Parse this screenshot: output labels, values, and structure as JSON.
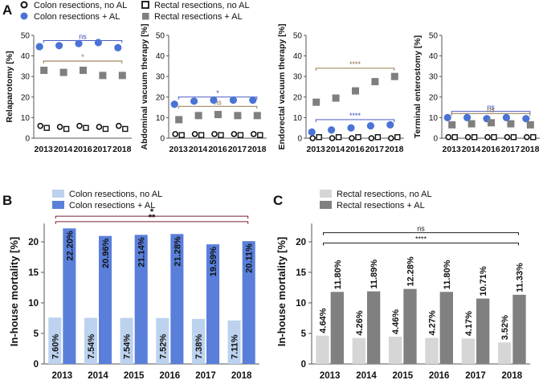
{
  "legend_top": {
    "items": [
      {
        "label": "Colon resections, no AL",
        "marker": "circle-open"
      },
      {
        "label": "Colon resections + AL",
        "marker": "circle-filled"
      },
      {
        "label": "Rectal resections, no AL",
        "marker": "square-open"
      },
      {
        "label": "Rectal resections + AL",
        "marker": "square-filled"
      }
    ]
  },
  "colors": {
    "colon_al": "#4a73d6",
    "colon_no_al_bar": "#bcd2ee",
    "colon_al_bar": "#5a7fdb",
    "rectal_no_al_bar": "#d6d6d6",
    "rectal_al_bar": "#808080",
    "rectal_al_marker": "#7f7f7f",
    "sig_blue": "#3344bb",
    "sig_brown": "#8b6a3a",
    "text": "#111111"
  },
  "chart_data": [
    {
      "panel": "A",
      "type": "scatter",
      "ylabel": "Relaparotomy [%]",
      "ylim": [
        0,
        50
      ],
      "yticks": [
        0,
        10,
        20,
        30,
        40,
        50
      ],
      "categories": [
        "2013",
        "2014",
        "2016",
        "2017",
        "2018"
      ],
      "series": [
        {
          "name": "Colon resections, no AL",
          "marker": "circle-open",
          "values": [
            6,
            5.5,
            6,
            5.5,
            6
          ]
        },
        {
          "name": "Colon resections + AL",
          "marker": "circle-filled",
          "values": [
            44.5,
            45,
            46,
            46.5,
            44
          ]
        },
        {
          "name": "Rectal resections, no AL",
          "marker": "square-open",
          "values": [
            5,
            4.5,
            5,
            4.5,
            4.5
          ]
        },
        {
          "name": "Rectal resections + AL",
          "marker": "square-filled",
          "values": [
            33,
            32,
            33,
            30.5,
            30.5
          ]
        }
      ],
      "brackets": [
        {
          "label": "ns",
          "y": 47.5,
          "color": "blue"
        },
        {
          "label": "*",
          "y": 37.5,
          "color": "brown"
        }
      ]
    },
    {
      "panel": "A2",
      "type": "scatter",
      "ylabel": "Abdominal vacuum therapy [%]",
      "ylim": [
        0,
        50
      ],
      "yticks": [
        0,
        10,
        20,
        30,
        40,
        50
      ],
      "categories": [
        "2013",
        "2014",
        "2016",
        "2017",
        "2018"
      ],
      "series": [
        {
          "name": "Colon resections, no AL",
          "marker": "circle-open",
          "values": [
            2,
            2,
            2,
            2,
            2
          ]
        },
        {
          "name": "Colon resections + AL",
          "marker": "circle-filled",
          "values": [
            16.5,
            18,
            18.5,
            18.5,
            18.5
          ]
        },
        {
          "name": "Rectal resections, no AL",
          "marker": "square-open",
          "values": [
            1.5,
            1.5,
            1.5,
            1.5,
            1.5
          ]
        },
        {
          "name": "Rectal resections + AL",
          "marker": "square-filled",
          "values": [
            9,
            11,
            11.5,
            11,
            11
          ]
        }
      ],
      "brackets": [
        {
          "label": "*",
          "y": 20,
          "color": "blue"
        },
        {
          "label": "ns",
          "y": 15.5,
          "color": "brown"
        }
      ]
    },
    {
      "panel": "A3",
      "type": "scatter",
      "ylabel": "Endorectal vacuum therapy [%]",
      "ylim": [
        0,
        50
      ],
      "yticks": [
        0,
        10,
        20,
        30,
        40,
        50
      ],
      "categories": [
        "2013",
        "2014",
        "2016",
        "2017",
        "2018"
      ],
      "series": [
        {
          "name": "Colon resections, no AL",
          "marker": "circle-open",
          "values": [
            0,
            0,
            0,
            0,
            0
          ]
        },
        {
          "name": "Colon resections + AL",
          "marker": "circle-filled",
          "values": [
            3,
            4,
            5,
            6,
            6.5
          ]
        },
        {
          "name": "Rectal resections, no AL",
          "marker": "square-open",
          "values": [
            0.5,
            0.5,
            0.5,
            0.5,
            0.5
          ]
        },
        {
          "name": "Rectal resections + AL",
          "marker": "square-filled",
          "values": [
            17.5,
            19.5,
            23,
            27.5,
            30
          ]
        }
      ],
      "brackets": [
        {
          "label": "****",
          "y": 34,
          "color": "brown"
        },
        {
          "label": "****",
          "y": 9,
          "color": "blue"
        }
      ]
    },
    {
      "panel": "A4",
      "type": "scatter",
      "ylabel": "Terminal enterostomy [%]",
      "ylim": [
        0,
        50
      ],
      "yticks": [
        0,
        10,
        20,
        30,
        40,
        50
      ],
      "categories": [
        "2013",
        "2014",
        "2016",
        "2017",
        "2018"
      ],
      "series": [
        {
          "name": "Colon resections, no AL",
          "marker": "circle-open",
          "values": [
            0.5,
            0.5,
            0.5,
            0.5,
            0.5
          ]
        },
        {
          "name": "Colon resections + AL",
          "marker": "circle-filled",
          "values": [
            10,
            10,
            9.5,
            10,
            9.5
          ]
        },
        {
          "name": "Rectal resections, no AL",
          "marker": "square-open",
          "values": [
            0.5,
            0.5,
            0.5,
            0.5,
            0.5
          ]
        },
        {
          "name": "Rectal resections + AL",
          "marker": "square-filled",
          "values": [
            6.5,
            7,
            7.5,
            7,
            6.5
          ]
        }
      ],
      "brackets": [
        {
          "label": "ns",
          "y": 13,
          "color": "blue"
        },
        {
          "label": "ns",
          "y": 12,
          "color": "brown"
        }
      ]
    },
    {
      "panel": "B",
      "type": "bar",
      "ylabel": "In-house mortality [%]",
      "ylim": [
        0,
        25
      ],
      "yticks": [
        0,
        5,
        10,
        15,
        20
      ],
      "legend": [
        "Colon resections, no AL",
        "Colon resections + AL"
      ],
      "categories": [
        "2013",
        "2014",
        "2015",
        "2016",
        "2017",
        "2018"
      ],
      "series": [
        {
          "name": "Colon resections, no AL",
          "values": [
            7.6,
            7.54,
            7.54,
            7.52,
            7.38,
            7.11
          ],
          "labels": [
            "7.60%",
            "7.54%",
            "7.54%",
            "7.52%",
            "7.38%",
            "7.11%"
          ]
        },
        {
          "name": "Colon resections + AL",
          "values": [
            22.2,
            20.96,
            21.14,
            21.28,
            19.59,
            20.11
          ],
          "labels": [
            "22.20%",
            "20.96%",
            "21.14%",
            "21.28%",
            "19.59%",
            "20.11%"
          ]
        }
      ],
      "brackets": [
        {
          "label": "*",
          "y": 24.2
        },
        {
          "label": "**",
          "y": 23.3
        }
      ]
    },
    {
      "panel": "C",
      "type": "bar",
      "ylabel": "In-house mortality [%]",
      "ylim": [
        0,
        25
      ],
      "yticks": [
        0,
        5,
        10,
        15,
        20
      ],
      "legend": [
        "Rectal resections, no AL",
        "Rectal resections + AL"
      ],
      "categories": [
        "2013",
        "2014",
        "2015",
        "2016",
        "2017",
        "2018"
      ],
      "series": [
        {
          "name": "Rectal resections, no AL",
          "values": [
            4.64,
            4.26,
            4.46,
            4.27,
            4.17,
            3.52
          ],
          "labels": [
            "4.64%",
            "4.26%",
            "4.46%",
            "4.27%",
            "4.17%",
            "3.52%"
          ]
        },
        {
          "name": "Rectal resections + AL",
          "values": [
            11.8,
            11.89,
            12.28,
            11.8,
            10.71,
            11.33
          ],
          "labels": [
            "11.80%",
            "11.89%",
            "12.28%",
            "11.80%",
            "10.71%",
            "11.33%"
          ]
        }
      ],
      "brackets": [
        {
          "label": "ns",
          "y": 21.5
        },
        {
          "label": "****",
          "y": 19.8
        }
      ]
    }
  ]
}
